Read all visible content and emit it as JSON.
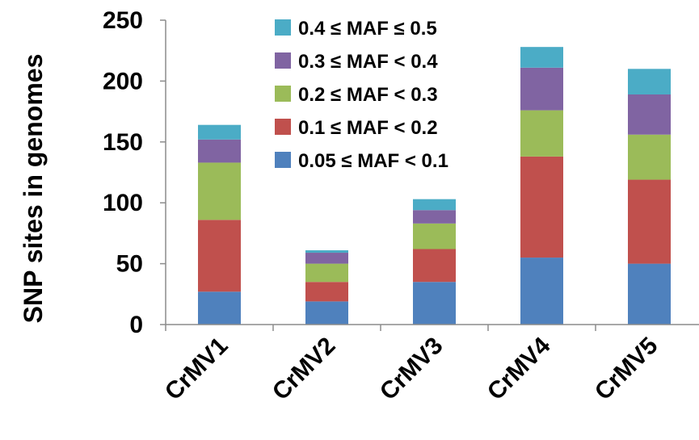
{
  "chart_data": {
    "type": "bar",
    "stacked": true,
    "title": "",
    "xlabel": "",
    "ylabel": "SNP sites in genomes",
    "ylim": [
      0,
      250
    ],
    "yticks": [
      0,
      50,
      100,
      150,
      200,
      250
    ],
    "grid": false,
    "legend_position": "top-center",
    "categories": [
      "CrMV1",
      "CrMV2",
      "CrMV3",
      "CrMV4",
      "CrMV5"
    ],
    "series": [
      {
        "name": "0.05 ≤ MAF < 0.1",
        "color": "#4F81BD",
        "values": [
          27,
          19,
          35,
          55,
          50
        ]
      },
      {
        "name": "0.1 ≤ MAF < 0.2",
        "color": "#C0504D",
        "values": [
          59,
          16,
          27,
          83,
          69
        ]
      },
      {
        "name": "0.2 ≤ MAF < 0.3",
        "color": "#9BBB59",
        "values": [
          47,
          15,
          21,
          38,
          37
        ]
      },
      {
        "name": "0.3 ≤ MAF < 0.4",
        "color": "#8064A2",
        "values": [
          19,
          9,
          11,
          35,
          33
        ]
      },
      {
        "name": "0.4 ≤ MAF ≤ 0.5",
        "color": "#4BACC6",
        "values": [
          12,
          2,
          9,
          17,
          21
        ]
      }
    ],
    "legend_order": [
      4,
      3,
      2,
      1,
      0
    ]
  }
}
